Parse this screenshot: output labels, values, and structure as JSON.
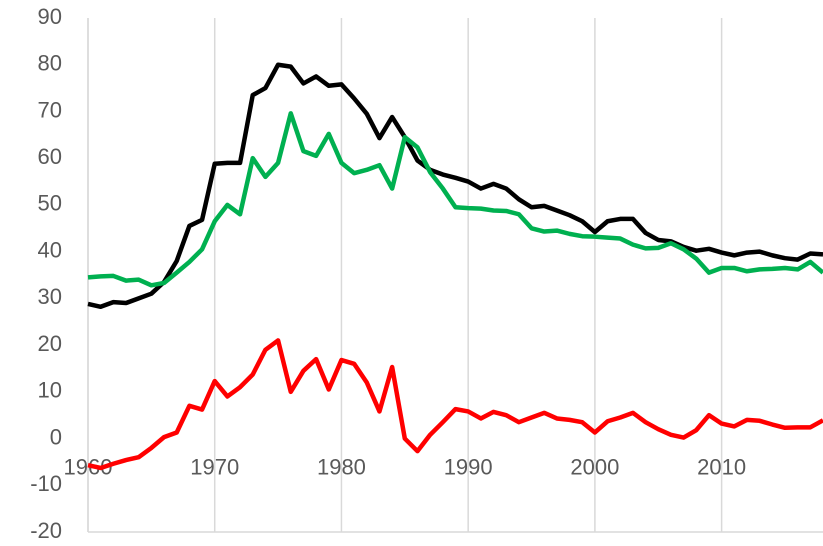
{
  "chart_data": {
    "type": "line",
    "x": [
      1960,
      1961,
      1962,
      1963,
      1964,
      1965,
      1966,
      1967,
      1968,
      1969,
      1970,
      1971,
      1972,
      1973,
      1974,
      1975,
      1976,
      1977,
      1978,
      1979,
      1980,
      1981,
      1982,
      1983,
      1984,
      1985,
      1986,
      1987,
      1988,
      1989,
      1990,
      1991,
      1992,
      1993,
      1994,
      1995,
      1996,
      1997,
      1998,
      1999,
      2000,
      2001,
      2002,
      2003,
      2004,
      2005,
      2006,
      2007,
      2008,
      2009,
      2010,
      2011,
      2012,
      2013,
      2014,
      2015,
      2016,
      2017,
      2018
    ],
    "series": [
      {
        "color": "#000000",
        "values": [
          28.8,
          28.2,
          29.2,
          29,
          30,
          31,
          33.5,
          38,
          45.5,
          46.8,
          58.8,
          59,
          59,
          73.5,
          75,
          80,
          79.6,
          76,
          77.5,
          75.5,
          75.8,
          72.8,
          69.5,
          64.3,
          68.8,
          64.5,
          59.5,
          57.5,
          56.5,
          55.8,
          55,
          53.5,
          54.5,
          53.5,
          51.2,
          49.5,
          49.8,
          48.8,
          47.8,
          46.5,
          44.2,
          46.5,
          47,
          47,
          44,
          42.5,
          42.2,
          41,
          40.2,
          40.6,
          39.8,
          39.2,
          39.8,
          40,
          39.2,
          38.6,
          38.3,
          39.6,
          39.4
        ]
      },
      {
        "color": "#00b050",
        "values": [
          34.5,
          34.7,
          34.8,
          33.8,
          34,
          32.8,
          33.3,
          35.5,
          37.8,
          40.5,
          46.5,
          50,
          48,
          60,
          56,
          59,
          69.6,
          61.5,
          60.5,
          65.2,
          59,
          56.8,
          57.5,
          58.5,
          53.5,
          64.5,
          62.3,
          57,
          53.5,
          49.5,
          49.3,
          49.2,
          48.8,
          48.7,
          48,
          45,
          44.3,
          44.5,
          43.8,
          43.3,
          43.2,
          43,
          42.8,
          41.5,
          40.7,
          40.8,
          41.8,
          40.5,
          38.5,
          35.5,
          36.5,
          36.5,
          35.8,
          36.2,
          36.3,
          36.5,
          36.2,
          37.8,
          35.5
        ]
      },
      {
        "color": "#ff0000",
        "values": [
          -5.7,
          -6.3,
          -5.4,
          -4.6,
          -4,
          -2,
          0.3,
          1.3,
          7,
          6.2,
          12.3,
          9,
          11,
          13.7,
          19,
          21,
          10,
          14.5,
          17,
          10.5,
          16.8,
          16,
          12,
          5.8,
          15.3,
          0,
          -2.7,
          0.8,
          3.5,
          6.3,
          5.8,
          4.3,
          5.7,
          5,
          3.5,
          4.5,
          5.5,
          4.3,
          4,
          3.5,
          1.3,
          3.7,
          4.5,
          5.5,
          3.5,
          2,
          0.8,
          0.2,
          1.8,
          5,
          3.2,
          2.6,
          4,
          3.8,
          3,
          2.3,
          2.4,
          2.4,
          3.9
        ]
      }
    ],
    "xlim": [
      1960,
      2018
    ],
    "xticks": [
      1960,
      1970,
      1980,
      1990,
      2000,
      2010
    ],
    "ylim": [
      -20,
      90
    ],
    "yticks": [
      -20,
      -10,
      0,
      10,
      20,
      30,
      40,
      50,
      60,
      70,
      80,
      90
    ],
    "grid": true
  }
}
